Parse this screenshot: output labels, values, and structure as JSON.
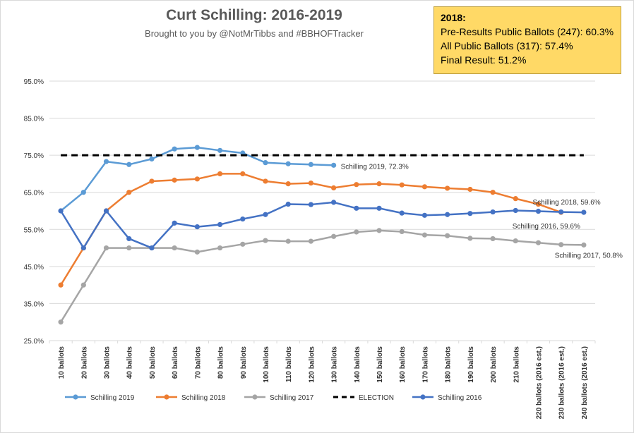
{
  "chart_data": {
    "type": "line",
    "title": "Curt Schilling: 2016-2019",
    "subtitle": "Brought to you by @NotMrTibbs and #BBHOFTracker",
    "xlabel": "",
    "ylabel": "",
    "ylim": [
      25,
      95
    ],
    "yticks": [
      "25.0%",
      "35.0%",
      "45.0%",
      "55.0%",
      "65.0%",
      "75.0%",
      "85.0%",
      "95.0%"
    ],
    "grid": true,
    "legend_position": "bottom",
    "categories": [
      "10 ballots",
      "20 ballots",
      "30 ballots",
      "40 ballots",
      "50 ballots",
      "60 ballots",
      "70 ballots",
      "80 ballots",
      "90 ballots",
      "100 ballots",
      "110 ballots",
      "120 ballots",
      "130 ballots",
      "140 ballots",
      "150 ballots",
      "160 ballots",
      "170 ballots",
      "180 ballots",
      "190 ballots",
      "200 ballots",
      "210 ballots",
      "220 ballots (2016 est.)",
      "230 ballots (2016 est.)",
      "240 ballots (2016 est.)"
    ],
    "series": [
      {
        "name": "Schilling 2019",
        "color": "#5b9bd5",
        "dashed": false,
        "markers": true,
        "values": [
          60.0,
          65.0,
          73.3,
          72.5,
          74.0,
          76.7,
          77.1,
          76.3,
          75.6,
          73.0,
          72.7,
          72.5,
          72.3,
          null,
          null,
          null,
          null,
          null,
          null,
          null,
          null,
          null,
          null,
          null
        ]
      },
      {
        "name": "Schilling 2018",
        "color": "#ed7d31",
        "dashed": false,
        "markers": true,
        "values": [
          40.0,
          50.0,
          60.0,
          65.0,
          68.0,
          68.3,
          68.6,
          70.0,
          70.0,
          68.0,
          67.3,
          67.5,
          66.2,
          67.1,
          67.3,
          67.0,
          66.5,
          66.1,
          65.8,
          65.0,
          63.3,
          61.8,
          59.6,
          null
        ]
      },
      {
        "name": "Schilling 2017",
        "color": "#a5a5a5",
        "dashed": false,
        "markers": true,
        "values": [
          30.0,
          40.0,
          50.0,
          50.0,
          50.0,
          50.0,
          48.9,
          50.0,
          51.0,
          52.0,
          51.8,
          51.8,
          53.1,
          54.3,
          54.7,
          54.4,
          53.5,
          53.3,
          52.6,
          52.5,
          51.9,
          51.4,
          50.9,
          50.8
        ]
      },
      {
        "name": "ELECTION",
        "color": "#000000",
        "dashed": true,
        "markers": false,
        "values": [
          75,
          75,
          75,
          75,
          75,
          75,
          75,
          75,
          75,
          75,
          75,
          75,
          75,
          75,
          75,
          75,
          75,
          75,
          75,
          75,
          75,
          75,
          75,
          75
        ]
      },
      {
        "name": "Schilling 2016",
        "color": "#4472c4",
        "dashed": false,
        "markers": true,
        "values": [
          60.0,
          50.0,
          60.0,
          52.5,
          50.0,
          56.7,
          55.7,
          56.3,
          57.8,
          59.0,
          61.8,
          61.7,
          62.3,
          60.7,
          60.7,
          59.4,
          58.8,
          59.0,
          59.3,
          59.7,
          60.1,
          59.9,
          59.7,
          59.6
        ]
      }
    ],
    "annotations": [
      {
        "text": "Schilling 2019, 72.3%",
        "series": "Schilling 2019",
        "index": 12
      },
      {
        "text": "Schilling 2018, 59.6%",
        "series": "Schilling 2018",
        "index": 22
      },
      {
        "text": "Schilling 2016, 59.6%",
        "series": "Schilling 2016",
        "index": 23
      },
      {
        "text": "Schilling 2017, 50.8%",
        "series": "Schilling 2017",
        "index": 23
      }
    ]
  },
  "infobox": {
    "year": "2018:",
    "line1": "Pre-Results Public Ballots (247): 60.3%",
    "line2": "All Public Ballots (317): 57.4%",
    "line3": "Final Result: 51.2%"
  },
  "colors": {
    "background": "#ffffff",
    "grid": "#d9d9d9",
    "text": "#595959",
    "infobox": "#ffd966"
  }
}
